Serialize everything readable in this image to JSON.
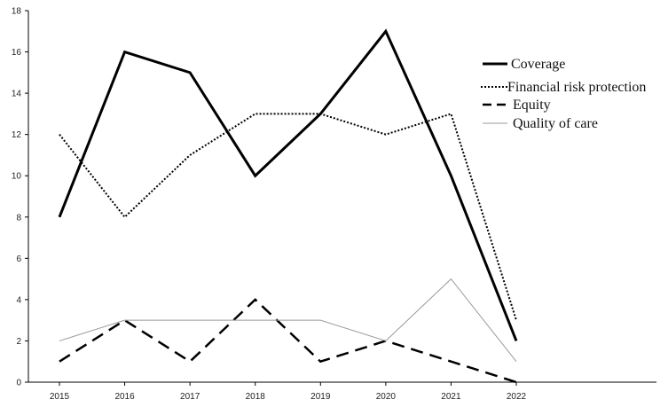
{
  "chart_data": {
    "type": "line",
    "title": "",
    "xlabel": "",
    "ylabel": "",
    "x": [
      "2015",
      "2016",
      "2017",
      "2018",
      "2019",
      "2020",
      "2021",
      "2022"
    ],
    "ylim": [
      0,
      18
    ],
    "yticks": [
      0,
      2,
      4,
      6,
      8,
      10,
      12,
      14,
      16,
      18
    ],
    "grid": false,
    "legend_position": "right",
    "series": [
      {
        "name": "Coverage",
        "values": [
          8,
          16,
          15,
          10,
          13,
          17,
          10,
          2
        ],
        "style": "solid-thick",
        "color": "#000000"
      },
      {
        "name": "Financial risk protection",
        "values": [
          12,
          8,
          11,
          13,
          13,
          12,
          13,
          3
        ],
        "style": "dotted",
        "color": "#000000"
      },
      {
        "name": "Equity",
        "values": [
          1,
          3,
          1,
          4,
          1,
          2,
          1,
          0
        ],
        "style": "dashed",
        "color": "#000000"
      },
      {
        "name": "Quality of care",
        "values": [
          2,
          3,
          3,
          3,
          3,
          2,
          5,
          1
        ],
        "style": "solid-thin",
        "color": "#999999"
      }
    ]
  }
}
